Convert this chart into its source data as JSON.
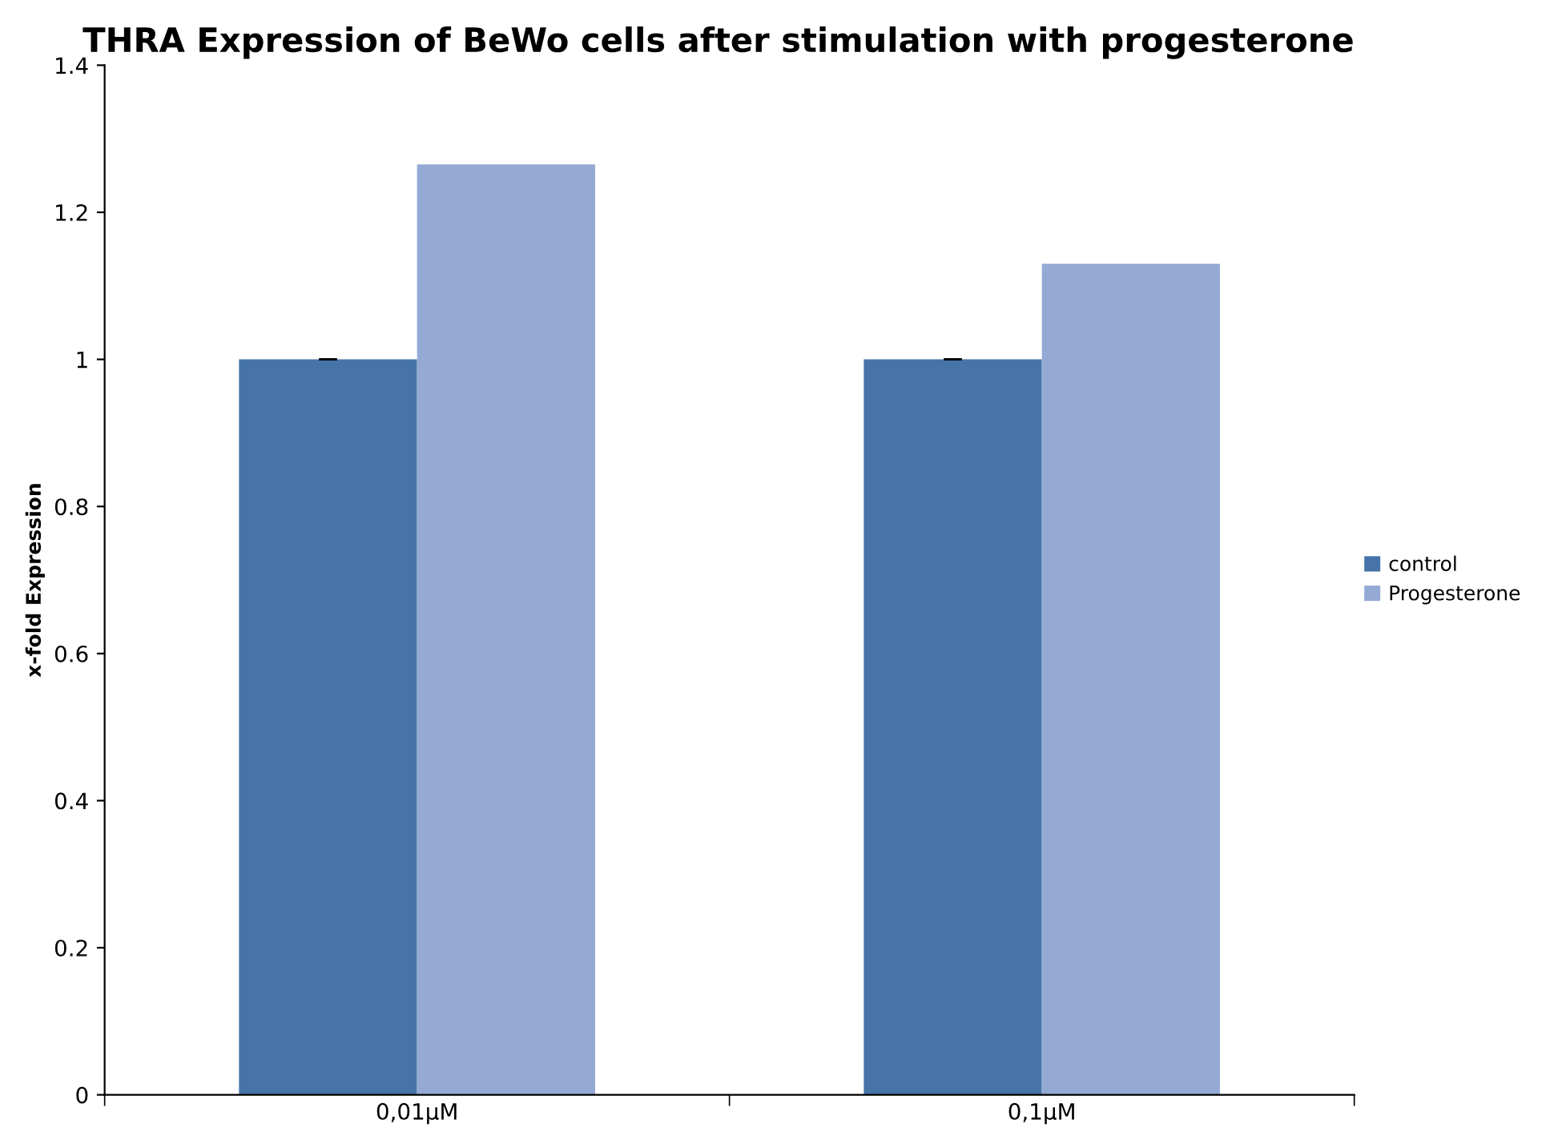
{
  "chart_data": {
    "type": "bar",
    "title": "THRA Expression of BeWo cells after stimulation with progesterone",
    "ylabel": "x-fold Expression",
    "categories": [
      "0,01µM",
      "0,1µM"
    ],
    "series": [
      {
        "name": "control",
        "color": "#4674a8",
        "values": [
          1,
          1
        ],
        "errors": [
          0,
          0
        ]
      },
      {
        "name": "Progesterone",
        "color": "#94aad4",
        "values": [
          1.265,
          1.13
        ]
      }
    ],
    "ylim": [
      0,
      1.4
    ],
    "yticks": [
      0,
      0.2,
      0.4,
      0.6,
      0.8,
      1,
      1.2,
      1.4
    ],
    "grid": false,
    "legend": "right"
  }
}
